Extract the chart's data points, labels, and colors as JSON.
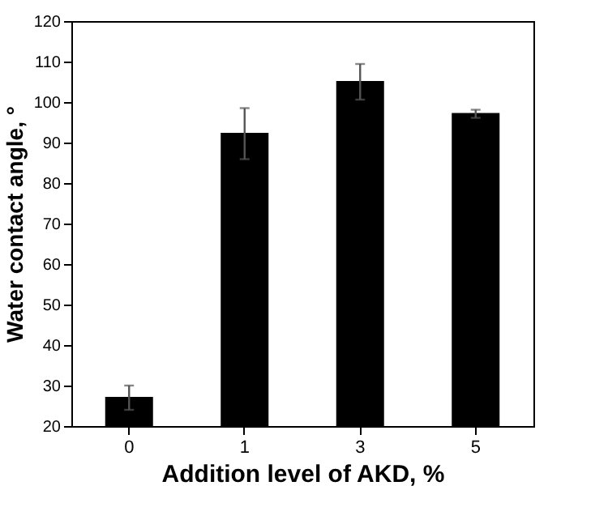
{
  "chart_data": {
    "type": "bar",
    "xlabel": "Addition level of AKD, %",
    "ylabel": "Water contact angle, °",
    "categories": [
      "0",
      "1",
      "3",
      "5"
    ],
    "values": [
      27,
      92.2,
      105,
      97.1
    ],
    "errors": [
      3,
      6.3,
      4.4,
      1
    ],
    "color": "#000000",
    "ylim": [
      20,
      120
    ],
    "yticks": [
      20,
      30,
      40,
      50,
      60,
      70,
      80,
      90,
      100,
      110,
      120
    ],
    "grid": false
  }
}
